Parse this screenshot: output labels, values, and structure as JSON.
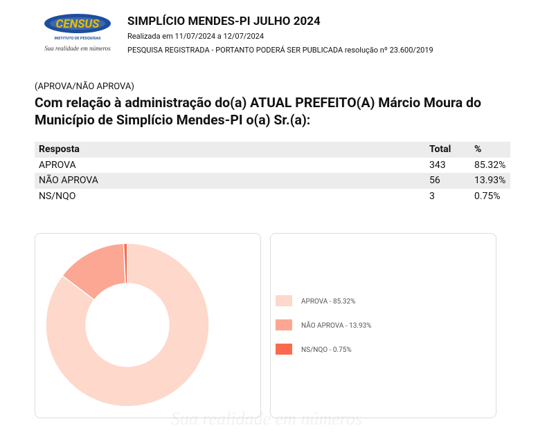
{
  "header": {
    "logo_text": "CENSUS",
    "logo_subtitle": "INSTITUTO DE PESQUISAS",
    "logo_tagline": "Sua realidade em números",
    "title": "SIMPLÍCIO MENDES-PI JULHO 2024",
    "date_line": "Realizada em 11/07/2024 a 12/07/2024",
    "registration": "PESQUISA REGISTRADA - PORTANTO PODERÁ SER PUBLICADA resolução nº 23.600/2019"
  },
  "question": {
    "tag": "(APROVA/NÃO APROVA)",
    "text": "Com relação à administração do(a) ATUAL PREFEITO(A) Márcio Moura do Município de Simplício Mendes-PI o(a) Sr.(a):"
  },
  "table": {
    "columns": [
      "Resposta",
      "Total",
      "%"
    ],
    "rows": [
      [
        "APROVA",
        "343",
        "85.32%"
      ],
      [
        "NÃO APROVA",
        "56",
        "13.93%"
      ],
      [
        "NS/NQO",
        "3",
        "0.75%"
      ]
    ]
  },
  "chart_data": {
    "type": "donut",
    "categories": [
      "APROVA - 85.32%",
      "NÃO APROVA - 13.93%",
      "NS/NQO - 0.75%"
    ],
    "values": [
      85.32,
      13.93,
      0.75
    ],
    "colors": [
      "#fdd8cb",
      "#fba793",
      "#fb6a4f"
    ]
  },
  "watermark": "Sua realidade em números"
}
